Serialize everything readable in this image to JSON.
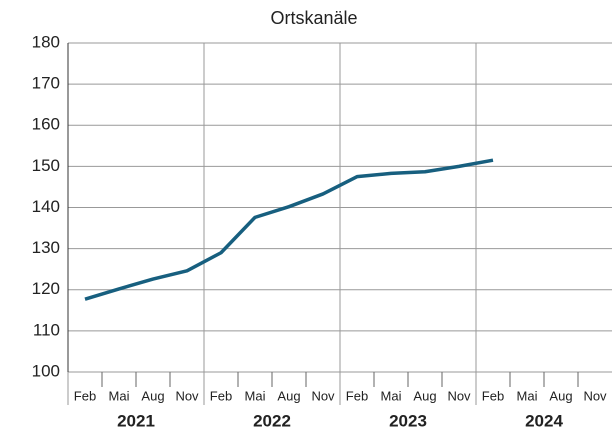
{
  "chart_data": {
    "type": "line",
    "title": "Ortskanäle",
    "categories": [
      "Feb",
      "Mai",
      "Aug",
      "Nov",
      "Feb",
      "Mai",
      "Aug",
      "Nov",
      "Feb",
      "Mai",
      "Aug",
      "Nov",
      "Feb",
      "Mai",
      "Aug",
      "Nov"
    ],
    "years": [
      "2021",
      "2022",
      "2023",
      "2024"
    ],
    "series": [
      {
        "name": "Ortskanäle",
        "color": "#175f7f",
        "values": [
          117.7,
          120.2,
          122.6,
          124.6,
          129.0,
          137.6,
          140.2,
          143.3,
          147.5,
          148.3,
          148.7,
          150.0,
          151.5,
          null,
          null,
          null
        ]
      }
    ],
    "ylim": [
      100,
      180
    ],
    "yticks": [
      100,
      110,
      120,
      130,
      140,
      150,
      160,
      170,
      180
    ],
    "grid": true
  }
}
